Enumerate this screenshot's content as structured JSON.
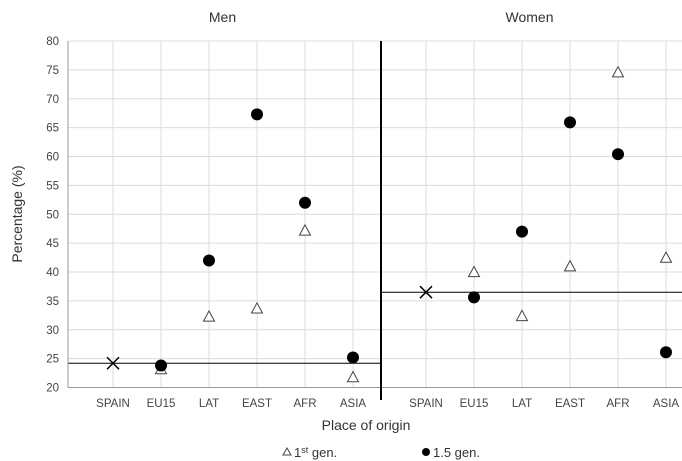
{
  "chart_data": {
    "type": "scatter",
    "ylabel": "Percentage (%)",
    "xlabel": "Place of origin",
    "ylim": [
      20,
      80
    ],
    "yticks": [
      20,
      25,
      30,
      35,
      40,
      45,
      50,
      55,
      60,
      65,
      70,
      75,
      80
    ],
    "categories": [
      "SPAIN",
      "EU15",
      "LAT",
      "EAST",
      "AFR",
      "ASIA"
    ],
    "grid": "vertical",
    "legend_position": "bottom",
    "legend": [
      {
        "marker": "triangle",
        "label_main": "1",
        "label_sup": "st",
        "label_rest": " gen."
      },
      {
        "marker": "circle",
        "label_main": "1.5 gen.",
        "label_sup": "",
        "label_rest": ""
      }
    ],
    "panels": [
      {
        "title": "Men",
        "reference": {
          "category": "SPAIN",
          "value": 24.2
        },
        "series": [
          {
            "name": "1st gen.",
            "marker": "triangle",
            "values": {
              "EU15": 23.2,
              "LAT": 32.3,
              "EAST": 33.7,
              "AFR": 47.2,
              "ASIA": 21.8
            }
          },
          {
            "name": "1.5 gen.",
            "marker": "circle",
            "values": {
              "EU15": 23.8,
              "LAT": 42.0,
              "EAST": 67.3,
              "AFR": 52.0,
              "ASIA": 25.2
            }
          }
        ]
      },
      {
        "title": "Women",
        "reference": {
          "category": "SPAIN",
          "value": 36.5
        },
        "series": [
          {
            "name": "1st gen.",
            "marker": "triangle",
            "values": {
              "EU15": 40.0,
              "LAT": 32.4,
              "EAST": 41.0,
              "AFR": 74.6,
              "ASIA": 42.5
            }
          },
          {
            "name": "1.5 gen.",
            "marker": "circle",
            "values": {
              "EU15": 35.6,
              "LAT": 47.0,
              "EAST": 65.9,
              "AFR": 60.4,
              "ASIA": 26.1
            }
          }
        ]
      }
    ]
  }
}
